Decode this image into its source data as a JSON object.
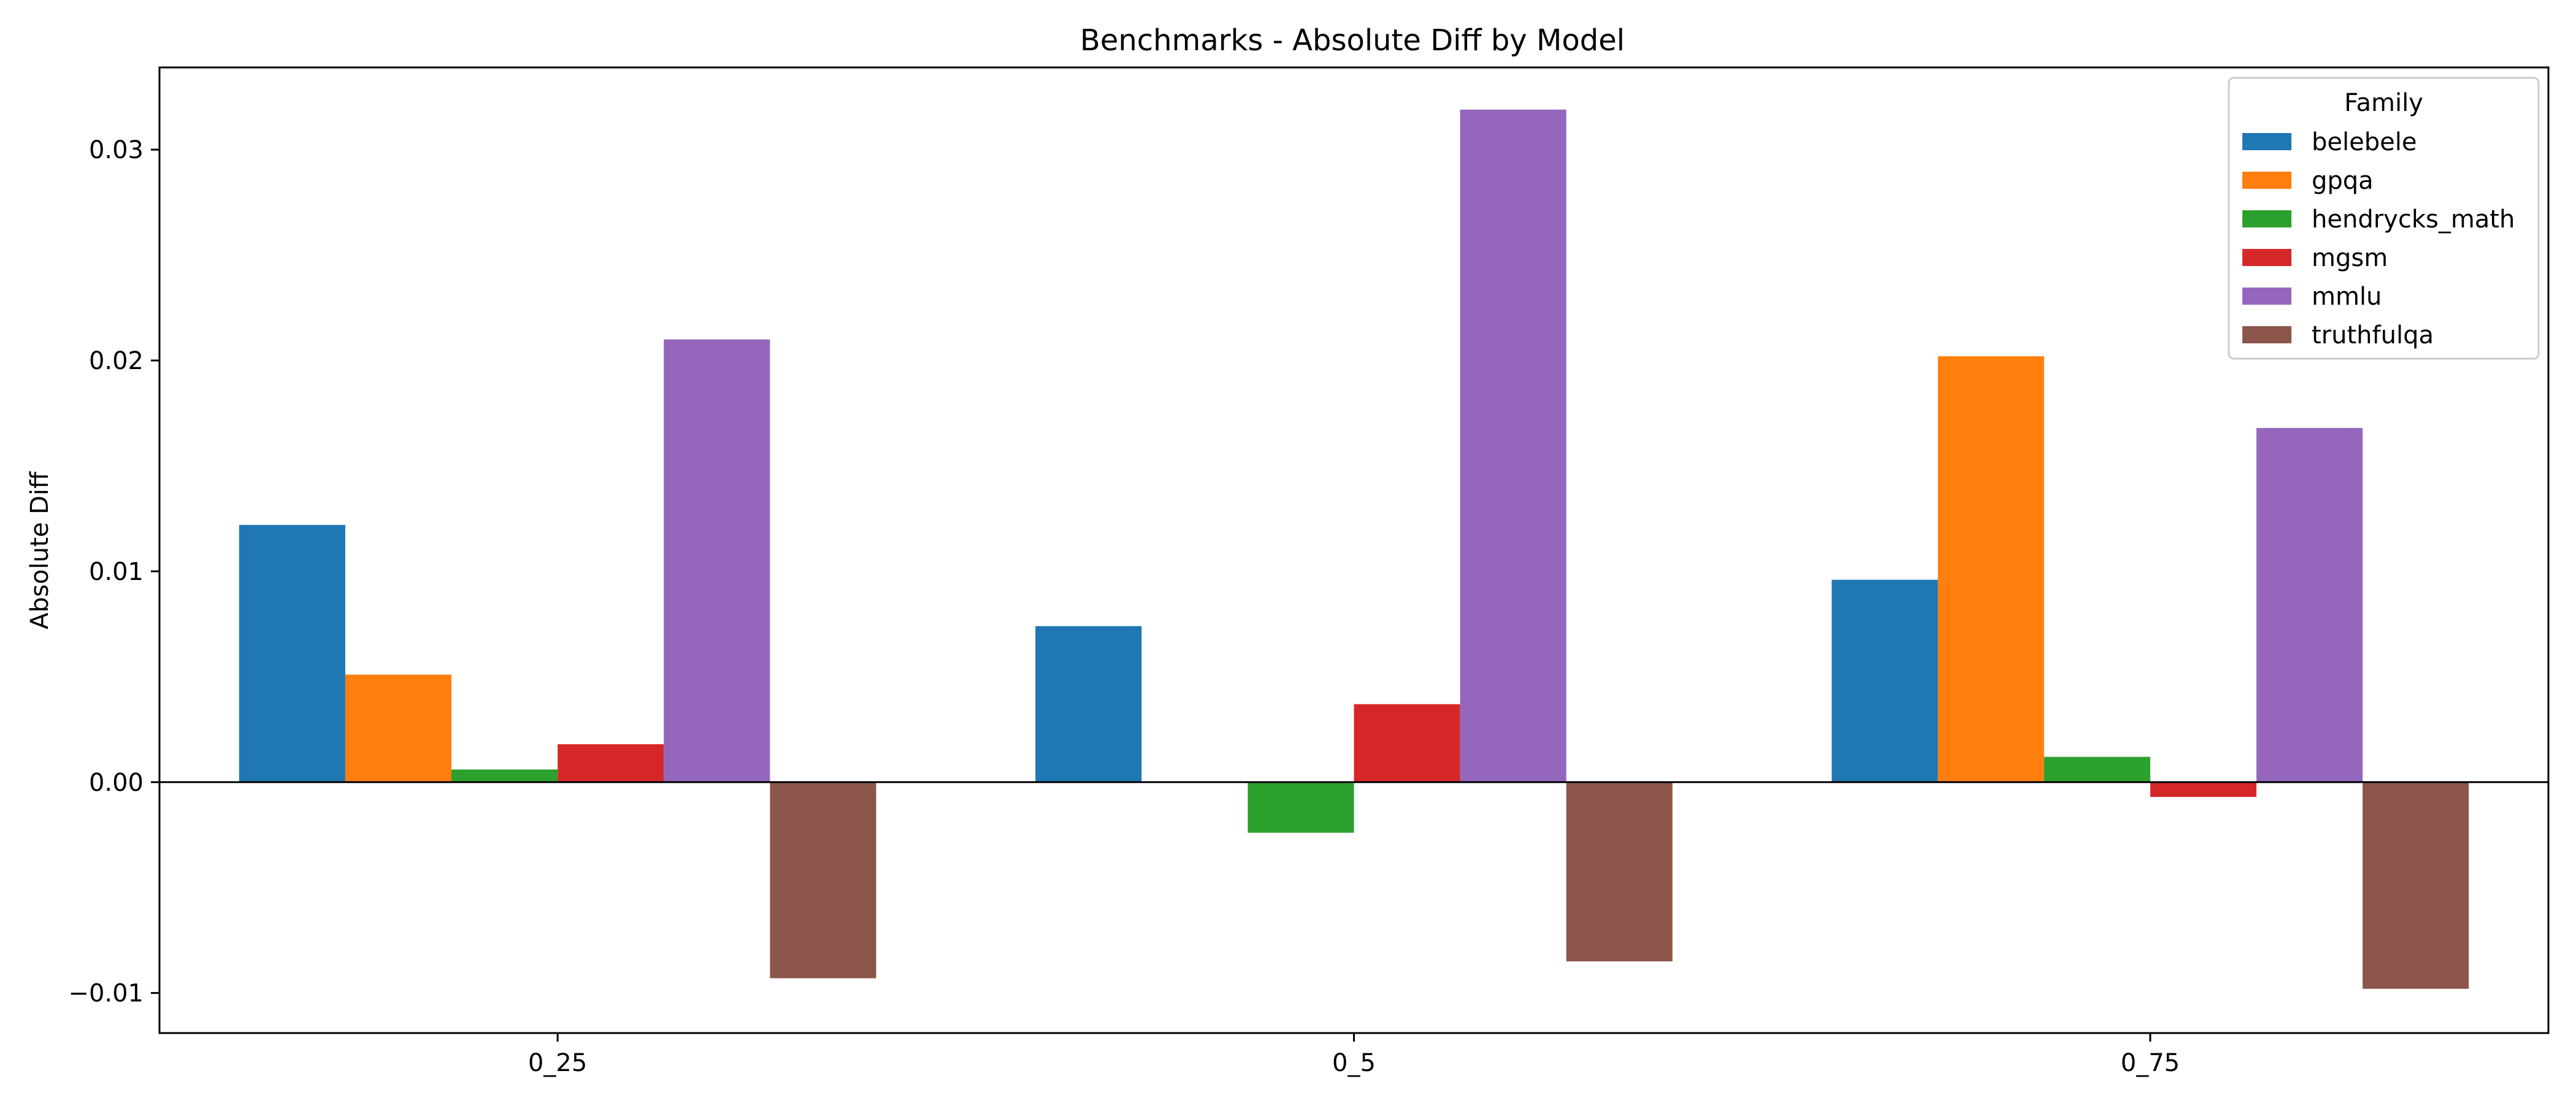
{
  "chart_data": {
    "type": "bar",
    "title": "Benchmarks - Absolute Diff by Model",
    "xlabel": "",
    "ylabel": "Absolute Diff",
    "categories": [
      "0_25",
      "0_5",
      "0_75"
    ],
    "series": [
      {
        "name": "belebele",
        "color": "#1f77b4",
        "values": [
          0.0122,
          0.0074,
          0.0096
        ]
      },
      {
        "name": "gpqa",
        "color": "#ff7f0e",
        "values": [
          0.0051,
          0.0,
          0.0202
        ]
      },
      {
        "name": "hendrycks_math",
        "color": "#2ca02c",
        "values": [
          0.0006,
          -0.0024,
          0.0012
        ]
      },
      {
        "name": "mgsm",
        "color": "#d62728",
        "values": [
          0.0018,
          0.0037,
          -0.0007
        ]
      },
      {
        "name": "mmlu",
        "color": "#9467bd",
        "values": [
          0.021,
          0.0319,
          0.0168
        ]
      },
      {
        "name": "truthfulqa",
        "color": "#8c564b",
        "values": [
          -0.0093,
          -0.0085,
          -0.0098
        ]
      }
    ],
    "ylim": [
      -0.0119,
      0.0339
    ],
    "yticks": [
      -0.01,
      0.0,
      0.01,
      0.02,
      0.03
    ],
    "ytick_labels": [
      "−0.01",
      "0.00",
      "0.01",
      "0.02",
      "0.03"
    ],
    "zero_line": true,
    "grid": false,
    "legend": {
      "title": "Family",
      "placement": "top-right"
    }
  }
}
